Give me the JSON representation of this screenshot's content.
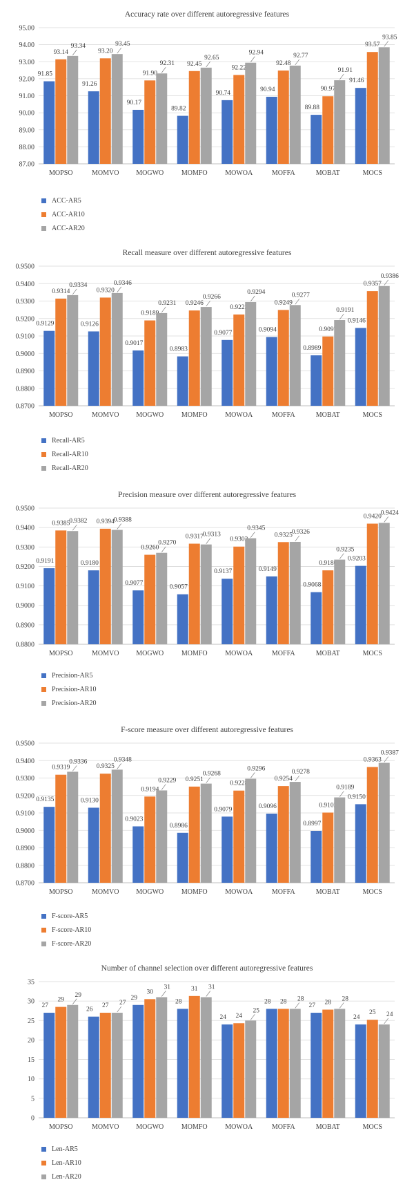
{
  "colors": {
    "s1": "#4472C4",
    "s2": "#ED7D31",
    "s3": "#A5A5A5"
  },
  "chart_data": [
    {
      "type": "bar",
      "title": "Accuracy rate over different autoregressive features",
      "categories": [
        "MOPSO",
        "MOMVO",
        "MOGWO",
        "MOMFO",
        "MOWOA",
        "MOFFA",
        "MOBAT",
        "MOCS"
      ],
      "series": [
        {
          "name": "ACC-AR5",
          "values": [
            91.85,
            91.26,
            90.17,
            89.82,
            90.74,
            90.94,
            89.88,
            91.46
          ],
          "labels": [
            "91.85",
            "91.26",
            "90.17",
            "89.82",
            "90.74",
            "90.94",
            "89.88",
            "91.46"
          ]
        },
        {
          "name": "ACC-AR10",
          "values": [
            93.14,
            93.2,
            91.9,
            92.45,
            92.22,
            92.48,
            90.97,
            93.57
          ],
          "labels": [
            "93.14",
            "93.20",
            "91.90",
            "92.45",
            "92.22",
            "92.48",
            "90.97",
            "93.57"
          ]
        },
        {
          "name": "ACC-AR20",
          "values": [
            93.34,
            93.45,
            92.31,
            92.65,
            92.94,
            92.77,
            91.91,
            93.85
          ],
          "labels": [
            "93.34",
            "93.45",
            "92.31",
            "92.65",
            "92.94",
            "92.77",
            "91.91",
            "93.85"
          ]
        }
      ],
      "ylim": [
        87.0,
        95.0
      ],
      "yticks": [
        "87.00",
        "88.00",
        "89.00",
        "90.00",
        "91.00",
        "92.00",
        "93.00",
        "94.00",
        "95.00"
      ],
      "grid": true,
      "legend": "bottom-left"
    },
    {
      "type": "bar",
      "title": "Recall measure over different autoregressive features",
      "categories": [
        "MOPSO",
        "MOMVO",
        "MOGWO",
        "MOMFO",
        "MOWOA",
        "MOFFA",
        "MOBAT",
        "MOCS"
      ],
      "series": [
        {
          "name": "Recall-AR5",
          "values": [
            0.9129,
            0.9126,
            0.9017,
            0.8983,
            0.9077,
            0.9094,
            0.8989,
            0.9146
          ],
          "labels": [
            "0.9129",
            "0.9126",
            "0.9017",
            "0.8983",
            "0.9077",
            "0.9094",
            "0.8989",
            "0.9146"
          ]
        },
        {
          "name": "Recall-AR10",
          "values": [
            0.9314,
            0.932,
            0.9189,
            0.9246,
            0.9223,
            0.9249,
            0.9097,
            0.9357
          ],
          "labels": [
            "0.9314",
            "0.9320",
            "0.9189",
            "0.9246",
            "0.9223",
            "0.9249",
            "0.9097",
            "0.9357"
          ]
        },
        {
          "name": "Recall-AR20",
          "values": [
            0.9334,
            0.9346,
            0.9231,
            0.9266,
            0.9294,
            0.9277,
            0.9191,
            0.9386
          ],
          "labels": [
            "0.9334",
            "0.9346",
            "0.9231",
            "0.9266",
            "0.9294",
            "0.9277",
            "0.9191",
            "0.9386"
          ]
        }
      ],
      "ylim": [
        0.87,
        0.95
      ],
      "yticks": [
        "0.8700",
        "0.8800",
        "0.8900",
        "0.9000",
        "0.9100",
        "0.9200",
        "0.9300",
        "0.9400",
        "0.9500"
      ],
      "grid": true,
      "legend": "bottom-left"
    },
    {
      "type": "bar",
      "title": "Precision measure over different autoregressive features",
      "categories": [
        "MOPSO",
        "MOMVO",
        "MOGWO",
        "MOMFO",
        "MOWOA",
        "MOFFA",
        "MOBAT",
        "MOCS"
      ],
      "series": [
        {
          "name": "Precision-AR5",
          "values": [
            0.9191,
            0.918,
            0.9077,
            0.9057,
            0.9137,
            0.9149,
            0.9068,
            0.9203
          ],
          "labels": [
            "0.9191",
            "0.9180",
            "0.9077",
            "0.9057",
            "0.9137",
            "0.9149",
            "0.9068",
            "0.9203"
          ]
        },
        {
          "name": "Precision-AR10",
          "values": [
            0.9385,
            0.9394,
            0.926,
            0.9317,
            0.9302,
            0.9325,
            0.918,
            0.942
          ],
          "labels": [
            "0.9385",
            "0.9394",
            "0.9260",
            "0.9317",
            "0.9302",
            "0.9325",
            "0.9180",
            "0.9420"
          ]
        },
        {
          "name": "Precision-AR20",
          "values": [
            0.9382,
            0.9388,
            0.927,
            0.9313,
            0.9345,
            0.9326,
            0.9235,
            0.9424
          ],
          "labels": [
            "0.9382",
            "0.9388",
            "0.9270",
            "0.9313",
            "0.9345",
            "0.9326",
            "0.9235",
            "0.9424"
          ]
        }
      ],
      "ylim": [
        0.88,
        0.95
      ],
      "yticks": [
        "0.8800",
        "0.8900",
        "0.9000",
        "0.9100",
        "0.9200",
        "0.9300",
        "0.9400",
        "0.9500"
      ],
      "grid": true,
      "legend": "bottom-left"
    },
    {
      "type": "bar",
      "title": "F-score measure over different autoregressive features",
      "categories": [
        "MOPSO",
        "MOMVO",
        "MOGWO",
        "MOMFO",
        "MOWOA",
        "MOFFA",
        "MOBAT",
        "MOCS"
      ],
      "series": [
        {
          "name": "F-score-AR5",
          "values": [
            0.9135,
            0.913,
            0.9023,
            0.8986,
            0.9079,
            0.9096,
            0.8997,
            0.915
          ],
          "labels": [
            "0.9135",
            "0.9130",
            "0.9023",
            "0.8986",
            "0.9079",
            "0.9096",
            "0.8997",
            "0.9150"
          ]
        },
        {
          "name": "F-score-AR10",
          "values": [
            0.9319,
            0.9325,
            0.9194,
            0.9251,
            0.9228,
            0.9254,
            0.9102,
            0.9363
          ],
          "labels": [
            "0.9319",
            "0.9325",
            "0.9194",
            "0.9251",
            "0.9228",
            "0.9254",
            "0.9102",
            "0.9363"
          ]
        },
        {
          "name": "F-score-AR20",
          "values": [
            0.9336,
            0.9348,
            0.9229,
            0.9268,
            0.9296,
            0.9278,
            0.9189,
            0.9387
          ],
          "labels": [
            "0.9336",
            "0.9348",
            "0.9229",
            "0.9268",
            "0.9296",
            "0.9278",
            "0.9189",
            "0.9387"
          ]
        }
      ],
      "ylim": [
        0.87,
        0.95
      ],
      "yticks": [
        "0.8700",
        "0.8800",
        "0.8900",
        "0.9000",
        "0.9100",
        "0.9200",
        "0.9300",
        "0.9400",
        "0.9500"
      ],
      "grid": true,
      "legend": "bottom-left"
    },
    {
      "type": "bar",
      "title": "Number of channel selection over different autoregressive features",
      "categories": [
        "MOPSO",
        "MOMVO",
        "MOGWO",
        "MOMFO",
        "MOWOA",
        "MOFFA",
        "MOBAT",
        "MOCS"
      ],
      "series": [
        {
          "name": "Len-AR5",
          "values": [
            27,
            26,
            29,
            28,
            24,
            28,
            27,
            24
          ],
          "labels": [
            "27",
            "26",
            "29",
            "28",
            "24",
            "28",
            "27",
            "24"
          ]
        },
        {
          "name": "Len-AR10",
          "values": [
            28.5,
            27,
            30.5,
            31.3,
            24.3,
            28,
            27.8,
            25.2
          ],
          "labels": [
            "29",
            "27",
            "30",
            "31",
            "24",
            "28",
            "28",
            "25"
          ]
        },
        {
          "name": "Len-AR20",
          "values": [
            29,
            27,
            31,
            31,
            25,
            28,
            28,
            24
          ],
          "labels": [
            "29",
            "27",
            "31",
            "31",
            "25",
            "28",
            "28",
            "24"
          ]
        }
      ],
      "ylim": [
        0,
        35
      ],
      "yticks": [
        "0",
        "5",
        "10",
        "15",
        "20",
        "25",
        "30",
        "35"
      ],
      "grid": true,
      "legend": "bottom-left"
    }
  ]
}
